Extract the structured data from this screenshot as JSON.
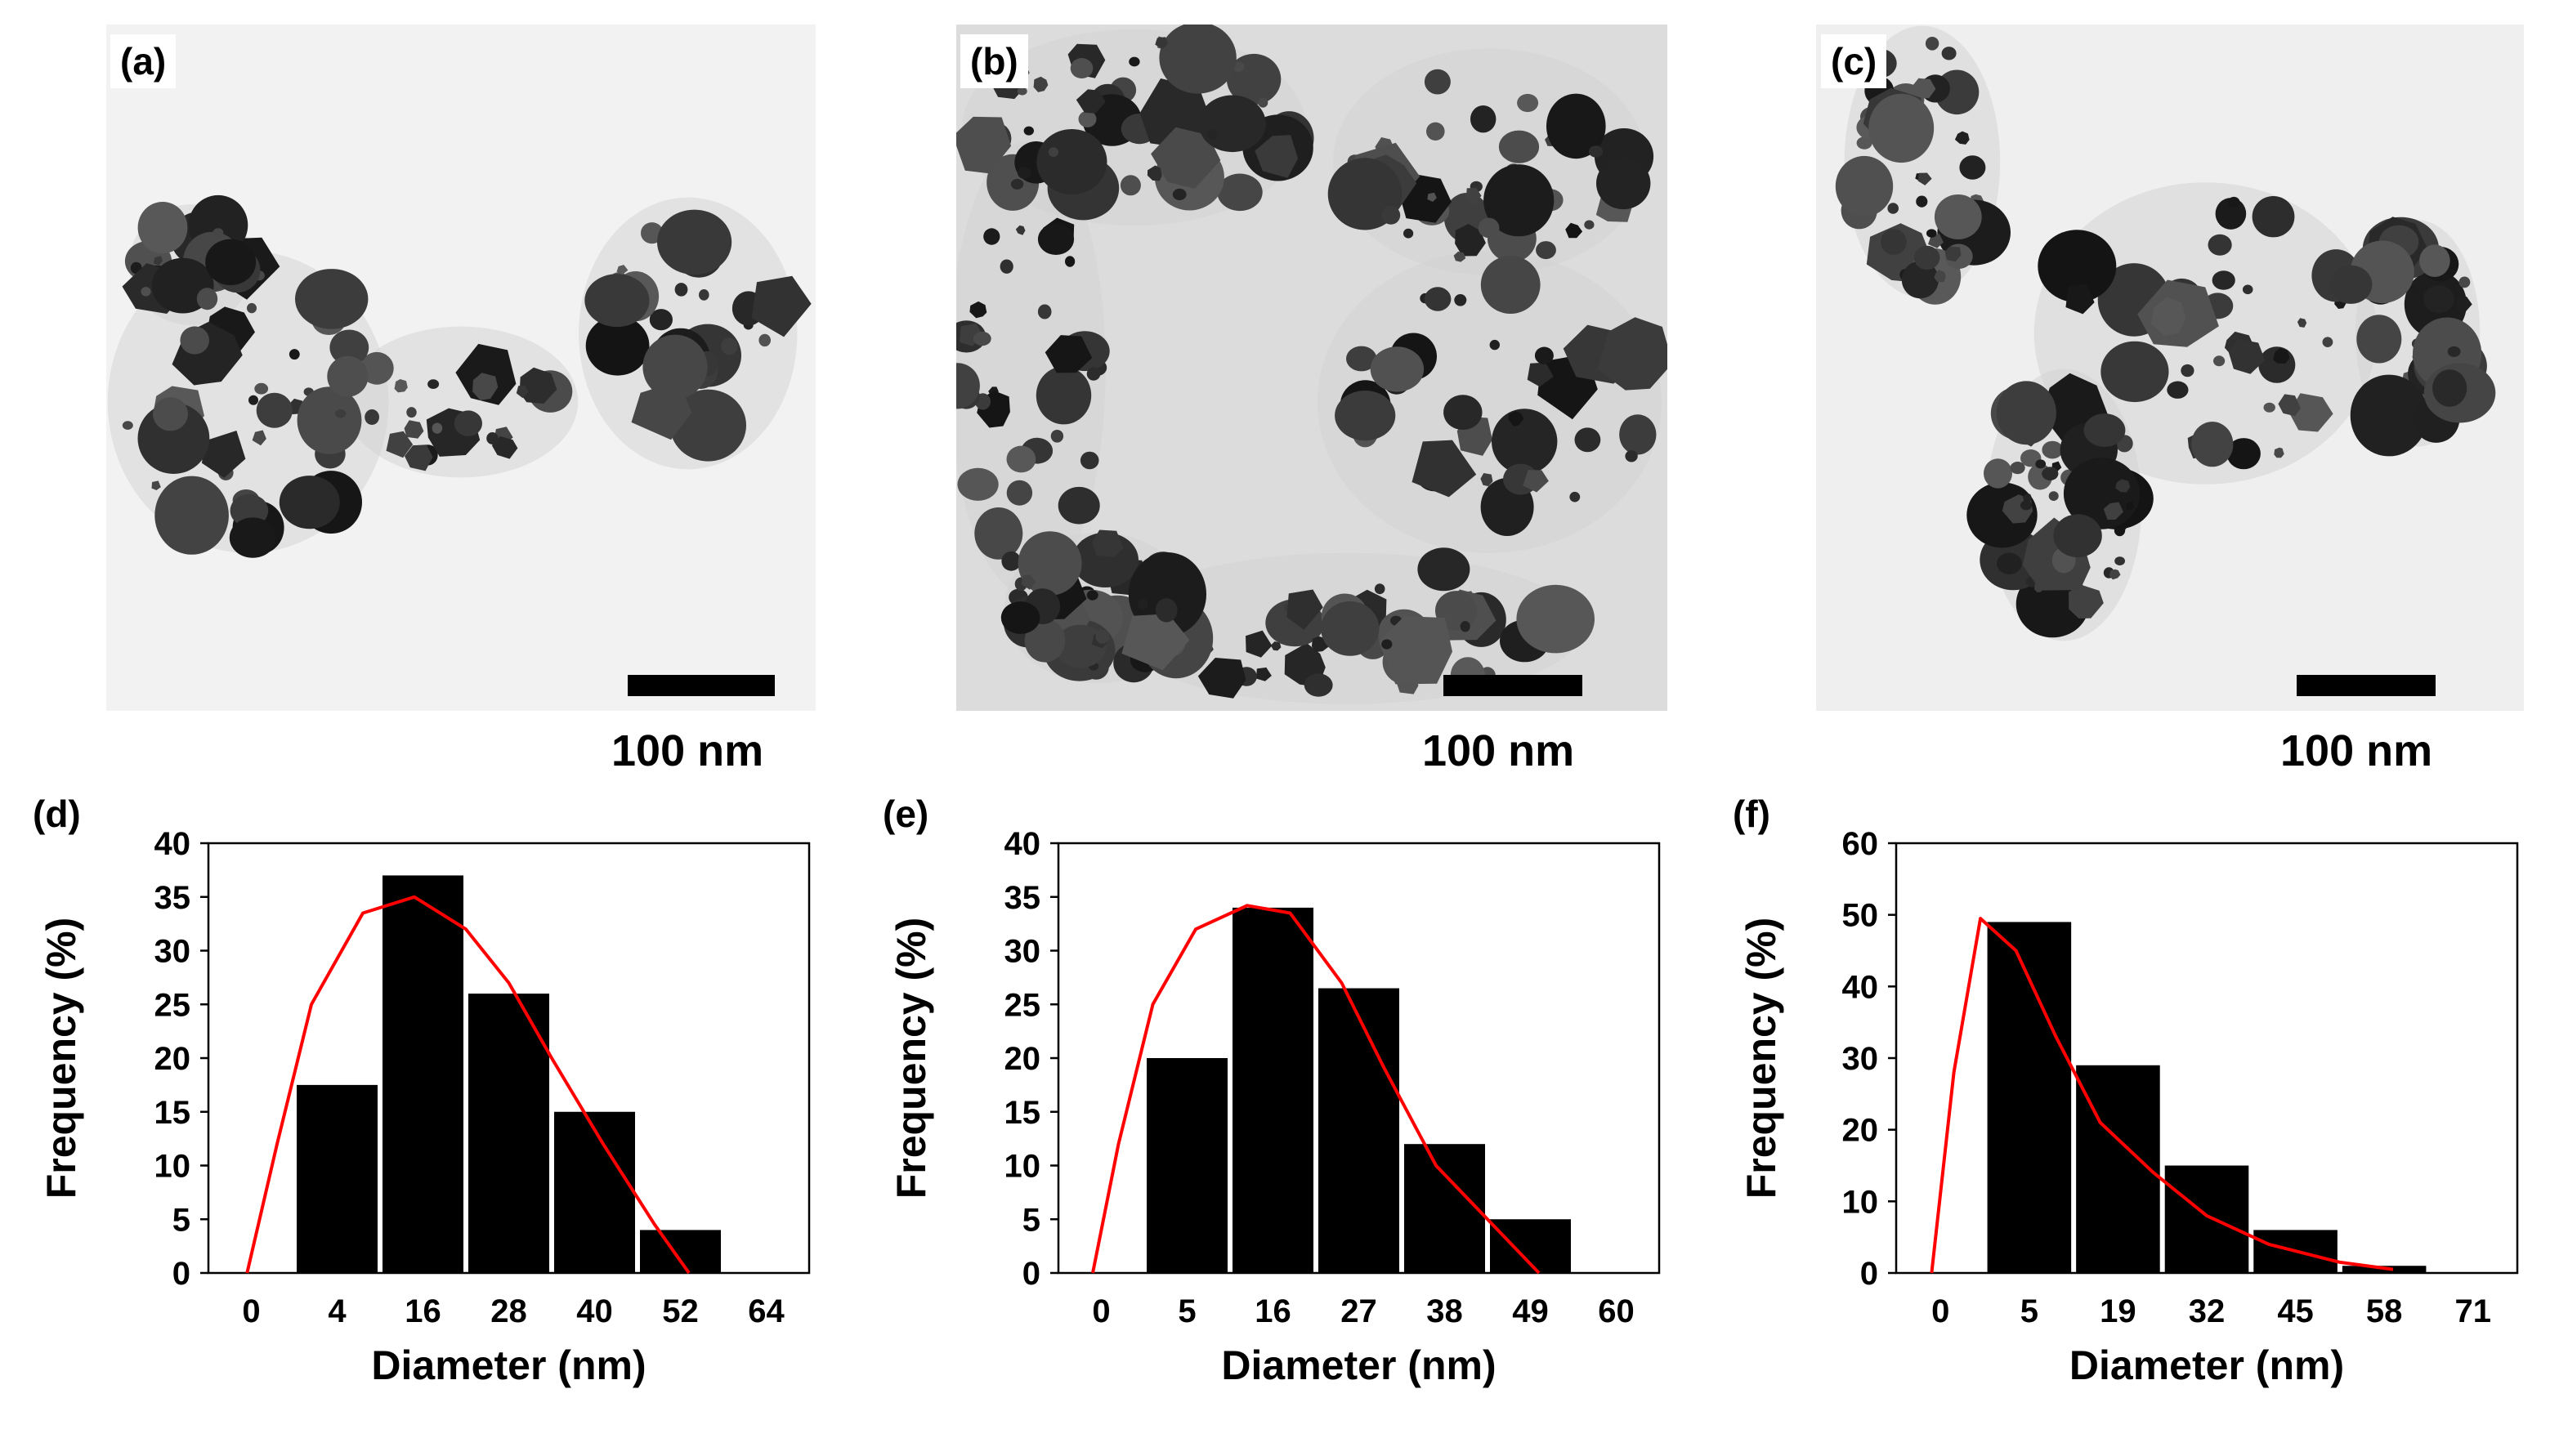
{
  "panels": [
    {
      "label": "(a)",
      "scale_label": "100 nm"
    },
    {
      "label": "(b)",
      "scale_label": "100 nm"
    },
    {
      "label": "(c)",
      "scale_label": "100 nm"
    }
  ],
  "chart_data": [
    {
      "type": "bar",
      "panel_label": "(d)",
      "xlabel": "Diameter (nm)",
      "ylabel": "Frequency (%)",
      "x_ticks": [
        "0",
        "4",
        "16",
        "28",
        "40",
        "52",
        "64"
      ],
      "categories": [
        "4",
        "16",
        "28",
        "40",
        "52"
      ],
      "values": [
        17.5,
        37,
        26,
        15,
        4
      ],
      "ylim": [
        0,
        40
      ],
      "y_ticks": [
        0,
        5,
        10,
        15,
        20,
        25,
        30,
        35,
        40
      ],
      "fit_curve": {
        "color": "#ff0000",
        "x": [
          0.45,
          0.8,
          1.2,
          1.8,
          2.4,
          3.0,
          3.5,
          4.0,
          4.6,
          5.2,
          5.6
        ],
        "y": [
          0,
          12,
          25,
          33.5,
          35,
          32,
          27,
          20,
          12,
          4.5,
          0
        ]
      }
    },
    {
      "type": "bar",
      "panel_label": "(e)",
      "xlabel": "Diameter (nm)",
      "ylabel": "Frequency (%)",
      "x_ticks": [
        "0",
        "5",
        "16",
        "27",
        "38",
        "49",
        "60"
      ],
      "categories": [
        "5",
        "16",
        "27",
        "38",
        "49"
      ],
      "values": [
        20,
        34,
        26.5,
        12,
        5
      ],
      "ylim": [
        0,
        40
      ],
      "y_ticks": [
        0,
        5,
        10,
        15,
        20,
        25,
        30,
        35,
        40
      ],
      "fit_curve": {
        "color": "#ff0000",
        "x": [
          0.4,
          0.7,
          1.1,
          1.6,
          2.2,
          2.7,
          3.3,
          3.8,
          4.4,
          5.0,
          5.6
        ],
        "y": [
          0,
          12,
          25,
          32,
          34.2,
          33.5,
          27,
          19,
          10,
          5,
          0
        ]
      }
    },
    {
      "type": "bar",
      "panel_label": "(f)",
      "xlabel": "Diameter (nm)",
      "ylabel": "Frequency (%)",
      "x_ticks": [
        "0",
        "5",
        "19",
        "32",
        "45",
        "58",
        "71"
      ],
      "categories": [
        "5",
        "19",
        "32",
        "45",
        "58"
      ],
      "values": [
        49,
        29,
        15,
        6,
        1
      ],
      "ylim": [
        0,
        60
      ],
      "y_ticks": [
        0,
        10,
        20,
        30,
        40,
        50,
        60
      ],
      "fit_curve": {
        "color": "#ff0000",
        "x": [
          0.4,
          0.65,
          0.95,
          1.35,
          1.8,
          2.3,
          2.9,
          3.5,
          4.2,
          5.0,
          5.6
        ],
        "y": [
          0,
          28,
          49.5,
          45,
          33,
          21,
          14,
          8,
          4,
          1.5,
          0.5
        ]
      }
    }
  ]
}
